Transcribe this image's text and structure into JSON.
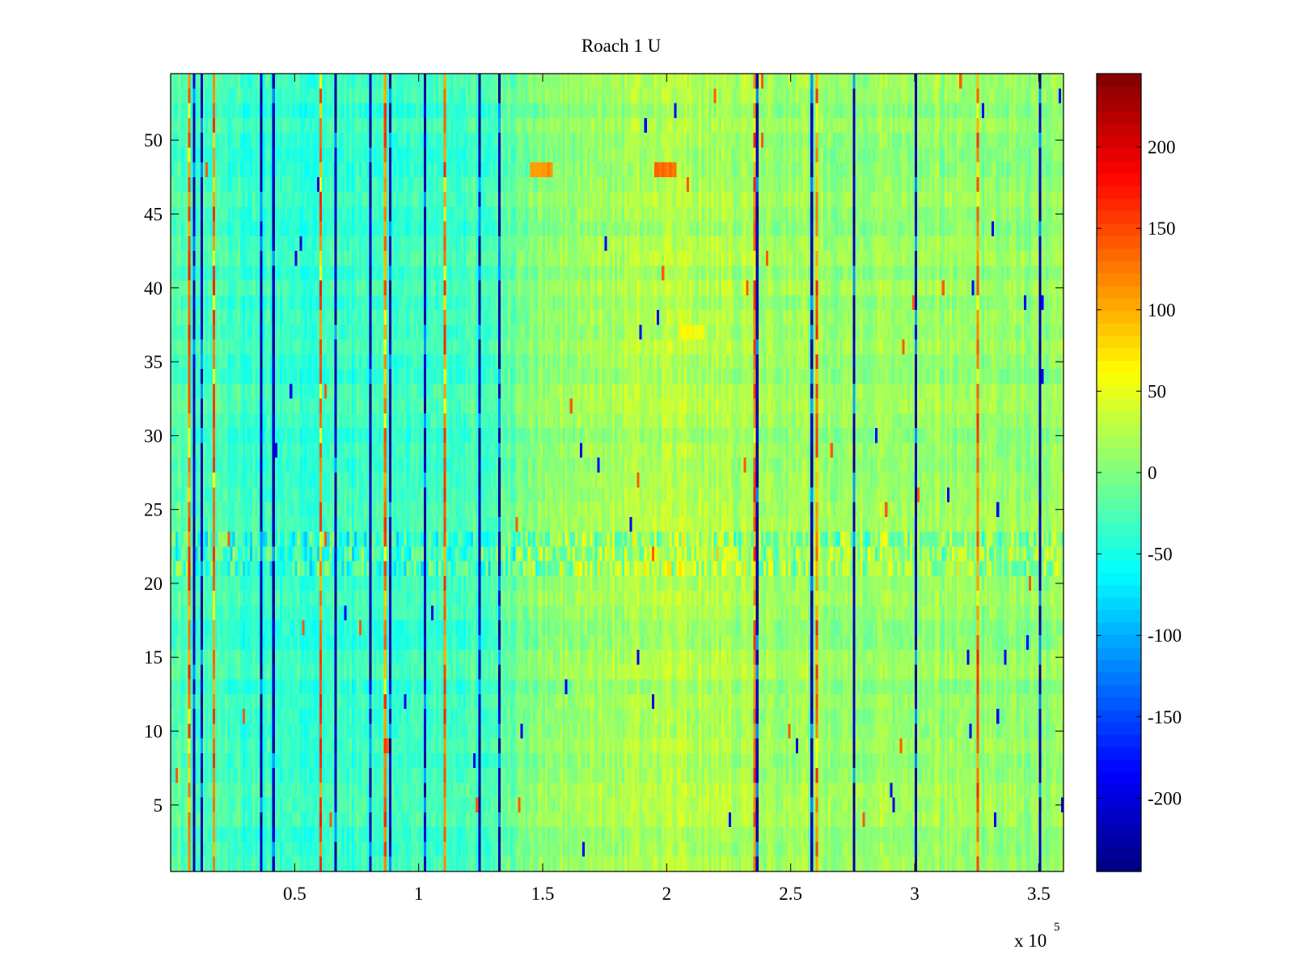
{
  "chart_data": {
    "type": "heatmap",
    "title": "Roach 1 U",
    "xlabel": "",
    "ylabel": "",
    "x_exponent_label": {
      "base": "x 10",
      "exponent": "5"
    },
    "x_ticks": [
      {
        "value": 0.5,
        "label": "0.5"
      },
      {
        "value": 1.0,
        "label": "1"
      },
      {
        "value": 1.5,
        "label": "1.5"
      },
      {
        "value": 2.0,
        "label": "2"
      },
      {
        "value": 2.5,
        "label": "2.5"
      },
      {
        "value": 3.0,
        "label": "3"
      },
      {
        "value": 3.5,
        "label": "3.5"
      }
    ],
    "x_range": [
      0.0,
      3.6
    ],
    "y_ticks": [
      {
        "value": 5,
        "label": "5"
      },
      {
        "value": 10,
        "label": "10"
      },
      {
        "value": 15,
        "label": "15"
      },
      {
        "value": 20,
        "label": "20"
      },
      {
        "value": 25,
        "label": "25"
      },
      {
        "value": 30,
        "label": "30"
      },
      {
        "value": 35,
        "label": "35"
      },
      {
        "value": 40,
        "label": "40"
      },
      {
        "value": 45,
        "label": "45"
      },
      {
        "value": 50,
        "label": "50"
      }
    ],
    "y_range": [
      0.5,
      54.5
    ],
    "rows": 54,
    "colorbar": {
      "range": [
        -245,
        245
      ],
      "colormap": "jet",
      "ticks": [
        {
          "value": 200,
          "label": "200"
        },
        {
          "value": 150,
          "label": "150"
        },
        {
          "value": 100,
          "label": "100"
        },
        {
          "value": 50,
          "label": "50"
        },
        {
          "value": 0,
          "label": "0"
        },
        {
          "value": -50,
          "label": "-50"
        },
        {
          "value": -100,
          "label": "-100"
        },
        {
          "value": -150,
          "label": "-150"
        },
        {
          "value": -200,
          "label": "-200"
        }
      ]
    },
    "trend_profile": [
      {
        "x": 0.0,
        "value": -25
      },
      {
        "x": 0.5,
        "value": -38
      },
      {
        "x": 1.0,
        "value": -32
      },
      {
        "x": 1.3,
        "value": -25
      },
      {
        "x": 1.5,
        "value": 5
      },
      {
        "x": 2.0,
        "value": 25
      },
      {
        "x": 2.5,
        "value": 12
      },
      {
        "x": 3.0,
        "value": 15
      },
      {
        "x": 3.6,
        "value": 5
      }
    ],
    "dark_spikes_x": [
      0.07,
      0.09,
      0.12,
      0.17,
      0.36,
      0.42,
      0.6,
      0.66,
      0.8,
      0.86,
      0.88,
      1.02,
      1.1,
      1.24,
      1.32,
      2.35,
      2.36,
      2.58,
      2.6,
      2.75,
      3.01,
      3.25,
      3.5
    ],
    "hotspots": [
      {
        "x_range": [
          1.45,
          1.54
        ],
        "row": 48,
        "value": 115
      },
      {
        "x_range": [
          1.95,
          2.04
        ],
        "row": 48,
        "value": 130
      },
      {
        "x_range": [
          2.05,
          2.15
        ],
        "row": 37,
        "value": 60
      }
    ]
  }
}
